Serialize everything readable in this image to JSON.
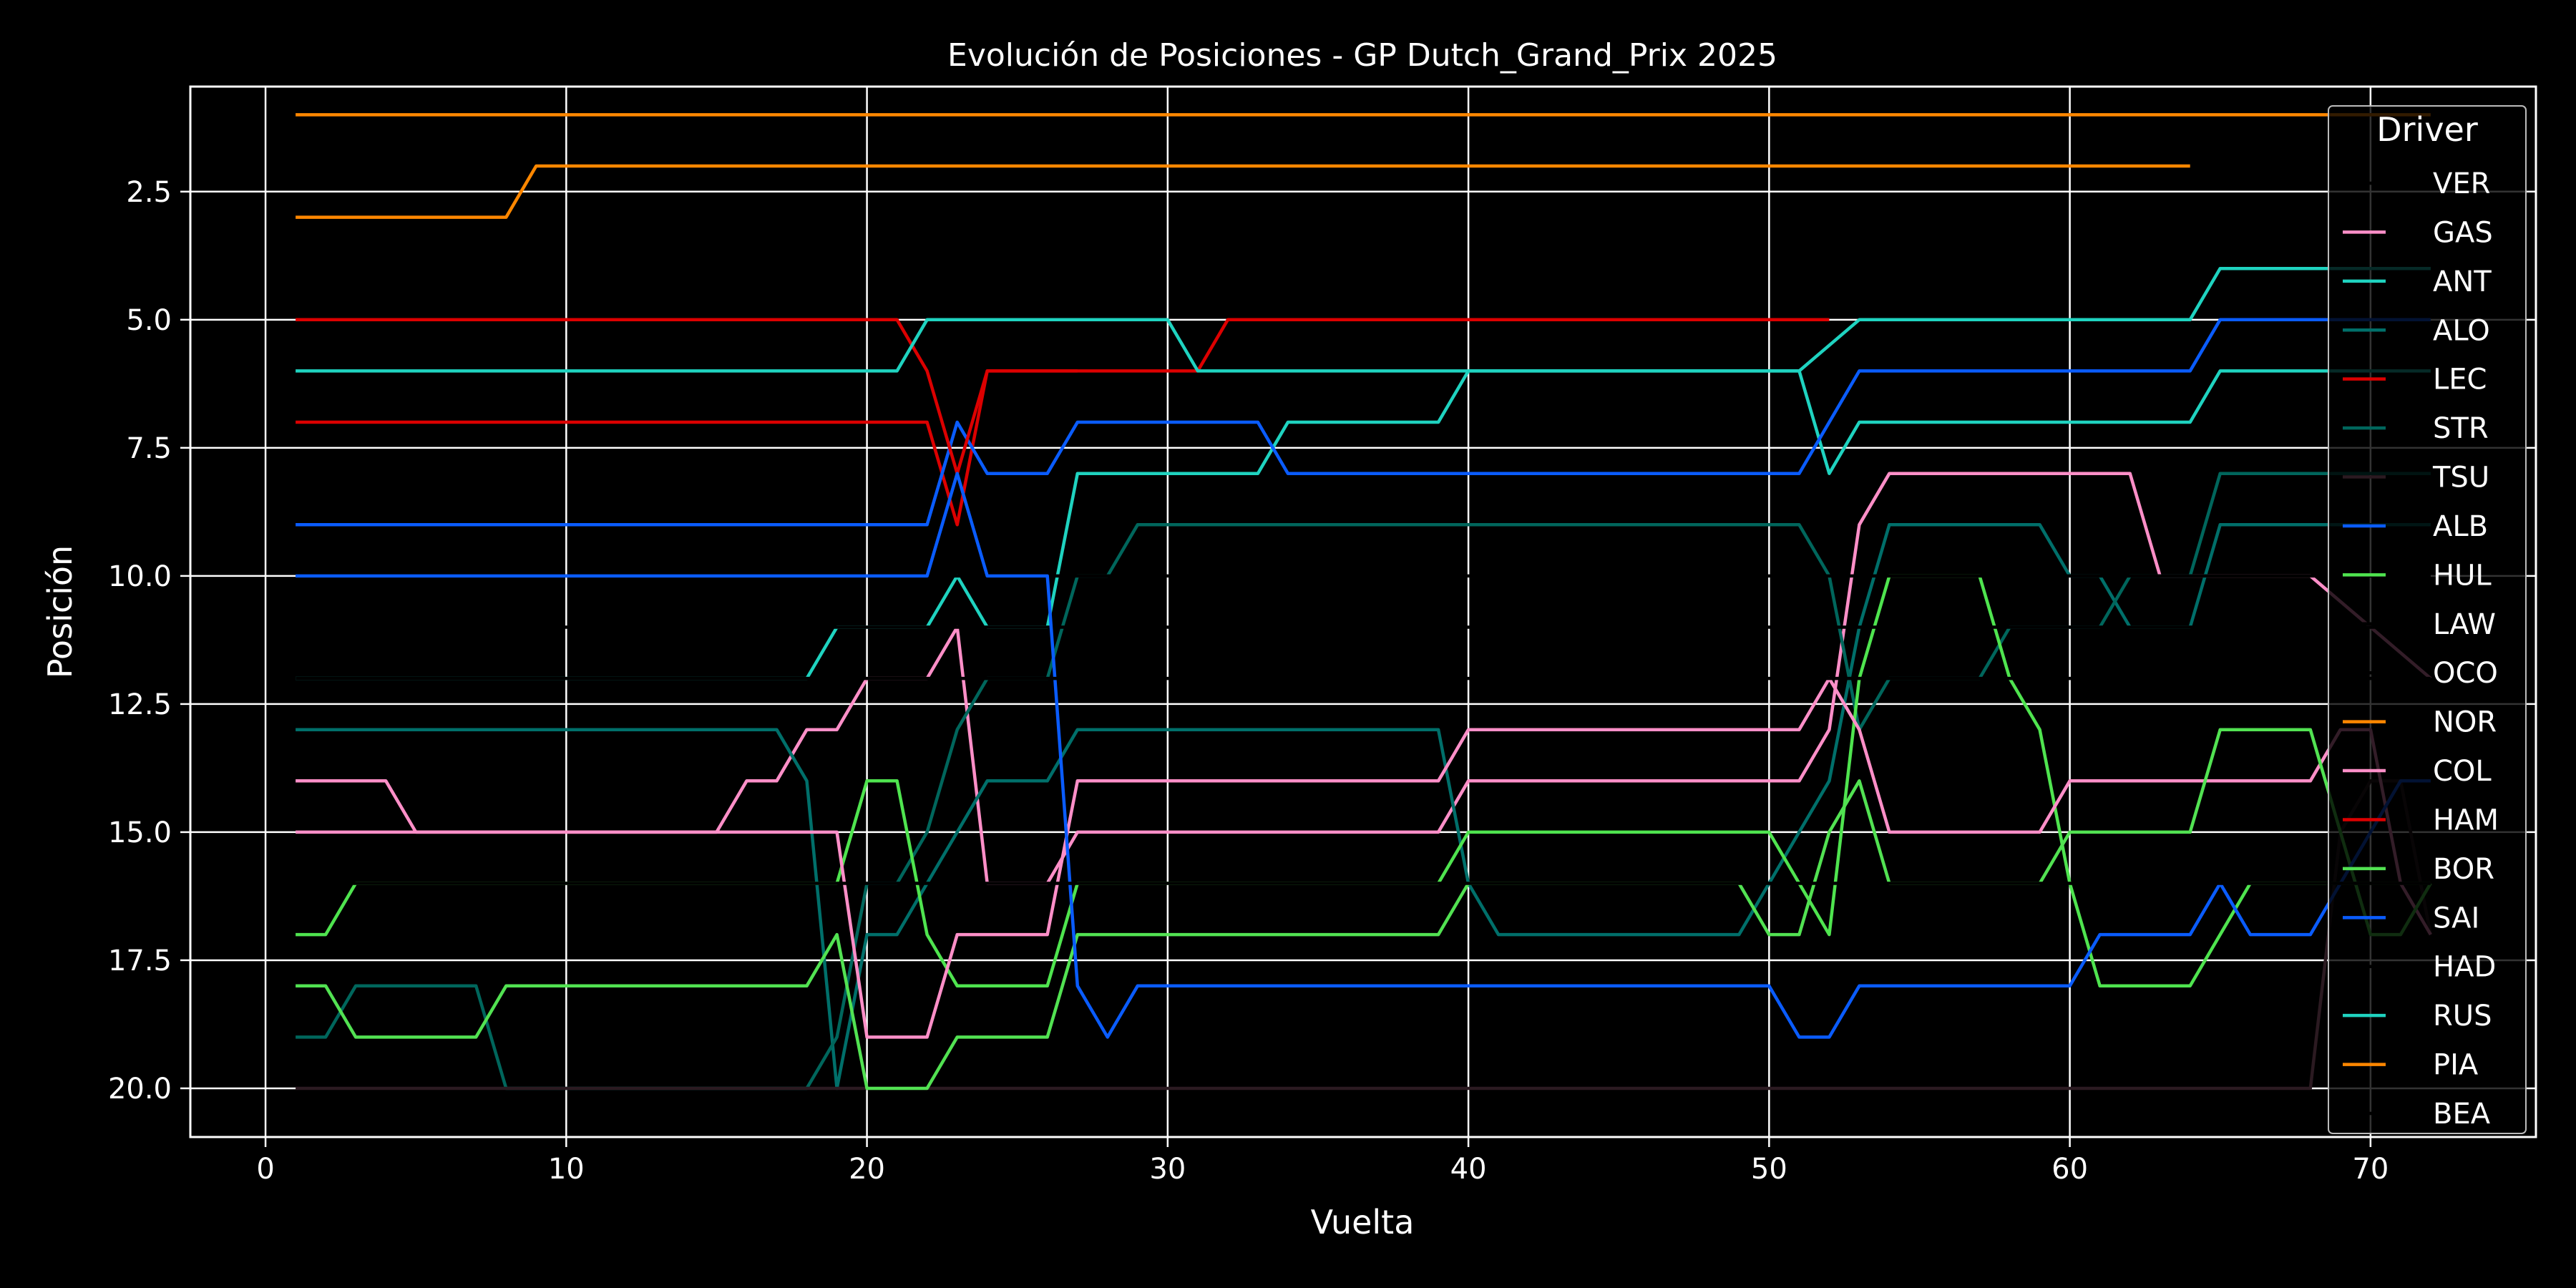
{
  "chart_data": {
    "type": "line",
    "title": "Evolución de Posiciones - GP Dutch_Grand_Prix 2025",
    "xlabel": "Vuelta",
    "ylabel": "Posición",
    "xlim": [
      -2.5,
      75.5
    ],
    "ylim": [
      20.95,
      0.45
    ],
    "y_inverted": true,
    "grid": true,
    "background": "#000000",
    "foreground": "#ffffff",
    "x_ticks": [
      0,
      10,
      20,
      30,
      40,
      50,
      60,
      70
    ],
    "x_tick_labels": [
      "0",
      "10",
      "20",
      "30",
      "40",
      "50",
      "60",
      "70"
    ],
    "y_ticks": [
      2.5,
      5.0,
      7.5,
      10.0,
      12.5,
      15.0,
      17.5,
      20.0
    ],
    "y_tick_labels": [
      "2.5",
      "5.0",
      "7.5",
      "10.0",
      "12.5",
      "15.0",
      "17.5",
      "20.0"
    ],
    "legend": {
      "title": "Driver",
      "position": "top-right"
    },
    "series": [
      {
        "name": "VER",
        "color": "#000000",
        "points": [
          [
            1,
            1
          ],
          [
            72,
            1
          ]
        ]
      },
      {
        "name": "GAS",
        "color": "#ff8fc8",
        "points": [
          [
            1,
            15
          ],
          [
            15,
            15
          ],
          [
            16,
            14
          ],
          [
            17,
            14
          ],
          [
            18,
            13
          ],
          [
            19,
            13
          ],
          [
            20,
            12
          ],
          [
            22,
            12
          ],
          [
            23,
            11
          ],
          [
            24,
            16
          ],
          [
            26,
            16
          ],
          [
            27,
            15
          ],
          [
            39,
            15
          ],
          [
            40,
            14
          ],
          [
            51,
            14
          ],
          [
            52,
            13
          ],
          [
            53,
            9
          ],
          [
            54,
            8
          ],
          [
            62,
            8
          ],
          [
            63,
            10
          ],
          [
            68,
            10
          ],
          [
            70,
            11
          ],
          [
            72,
            12
          ]
        ]
      },
      {
        "name": "ANT",
        "color": "#1fd3c0",
        "points": [
          [
            1,
            12
          ],
          [
            18,
            12
          ],
          [
            19,
            11
          ],
          [
            21,
            11
          ],
          [
            22,
            11
          ],
          [
            23,
            10
          ],
          [
            24,
            11
          ],
          [
            26,
            11
          ],
          [
            27,
            8
          ],
          [
            33,
            8
          ],
          [
            34,
            7
          ],
          [
            39,
            7
          ],
          [
            40,
            6
          ],
          [
            51,
            6
          ],
          [
            52,
            8
          ],
          [
            53,
            7
          ],
          [
            64,
            7
          ],
          [
            65,
            6
          ],
          [
            72,
            6
          ]
        ]
      },
      {
        "name": "ALO",
        "color": "#006f6a",
        "points": [
          [
            1,
            13
          ],
          [
            17,
            13
          ],
          [
            18,
            14
          ],
          [
            19,
            20
          ],
          [
            20,
            17
          ],
          [
            21,
            17
          ],
          [
            22,
            16
          ],
          [
            23,
            15
          ],
          [
            24,
            14
          ],
          [
            26,
            14
          ],
          [
            27,
            13
          ],
          [
            39,
            13
          ],
          [
            40,
            16
          ],
          [
            41,
            17
          ],
          [
            49,
            17
          ],
          [
            52,
            14
          ],
          [
            53,
            11
          ],
          [
            54,
            9
          ],
          [
            59,
            9
          ],
          [
            60,
            10
          ],
          [
            61,
            10
          ],
          [
            62,
            11
          ],
          [
            64,
            11
          ],
          [
            65,
            9
          ],
          [
            72,
            9
          ]
        ]
      },
      {
        "name": "LEC",
        "color": "#dc0000",
        "points": [
          [
            1,
            7
          ],
          [
            22,
            7
          ],
          [
            23,
            9
          ],
          [
            24,
            6
          ],
          [
            31,
            6
          ],
          [
            32,
            5
          ],
          [
            52,
            5
          ]
        ]
      },
      {
        "name": "STR",
        "color": "#00665c",
        "points": [
          [
            1,
            19
          ],
          [
            2,
            19
          ],
          [
            3,
            18
          ],
          [
            7,
            18
          ],
          [
            8,
            20
          ],
          [
            18,
            20
          ],
          [
            19,
            19
          ],
          [
            20,
            16
          ],
          [
            21,
            16
          ],
          [
            22,
            15
          ],
          [
            23,
            13
          ],
          [
            24,
            12
          ],
          [
            26,
            12
          ],
          [
            27,
            10
          ],
          [
            28,
            10
          ],
          [
            29,
            9
          ],
          [
            51,
            9
          ],
          [
            52,
            10
          ],
          [
            53,
            13
          ],
          [
            54,
            12
          ],
          [
            57,
            12
          ],
          [
            58,
            11
          ],
          [
            61,
            11
          ],
          [
            62,
            10
          ],
          [
            64,
            10
          ],
          [
            65,
            8
          ],
          [
            72,
            8
          ]
        ]
      },
      {
        "name": "TSU",
        "color": "#2b1a21",
        "points": [
          [
            1,
            20
          ],
          [
            2,
            20
          ],
          [
            68,
            20
          ],
          [
            69,
            15
          ],
          [
            70,
            14
          ],
          [
            71,
            14
          ],
          [
            72,
            17
          ]
        ]
      },
      {
        "name": "ALB",
        "color": "#0a5cff",
        "points": [
          [
            1,
            9
          ],
          [
            22,
            9
          ],
          [
            23,
            7
          ],
          [
            24,
            8
          ],
          [
            26,
            8
          ],
          [
            27,
            7
          ],
          [
            33,
            7
          ],
          [
            34,
            8
          ],
          [
            51,
            8
          ],
          [
            52,
            7
          ],
          [
            53,
            6
          ],
          [
            64,
            6
          ],
          [
            65,
            5
          ],
          [
            72,
            5
          ]
        ]
      },
      {
        "name": "HUL",
        "color": "#4fe44f",
        "points": [
          [
            1,
            17
          ],
          [
            2,
            17
          ],
          [
            3,
            16
          ],
          [
            19,
            16
          ],
          [
            20,
            14
          ],
          [
            21,
            14
          ],
          [
            22,
            17
          ],
          [
            23,
            18
          ],
          [
            26,
            18
          ],
          [
            27,
            16
          ],
          [
            39,
            16
          ],
          [
            40,
            15
          ],
          [
            50,
            15
          ],
          [
            51,
            16
          ],
          [
            52,
            17
          ],
          [
            53,
            12
          ],
          [
            54,
            10
          ],
          [
            57,
            10
          ],
          [
            58,
            12
          ],
          [
            59,
            13
          ],
          [
            60,
            16
          ],
          [
            61,
            18
          ],
          [
            64,
            18
          ],
          [
            65,
            17
          ],
          [
            66,
            16
          ],
          [
            72,
            16
          ]
        ]
      },
      {
        "name": "LAW",
        "color": "#000000",
        "points": [
          [
            1,
            10
          ],
          [
            72,
            10
          ]
        ]
      },
      {
        "name": "OCO",
        "color": "#000000",
        "points": [
          [
            1,
            11
          ],
          [
            72,
            11
          ]
        ]
      },
      {
        "name": "NOR",
        "color": "#ff8700",
        "points": [
          [
            1,
            3
          ],
          [
            8,
            3
          ],
          [
            9,
            2
          ],
          [
            64,
            2
          ]
        ]
      },
      {
        "name": "COL",
        "color": "#ff8fc8",
        "points": [
          [
            1,
            14
          ],
          [
            4,
            14
          ],
          [
            5,
            15
          ],
          [
            19,
            15
          ],
          [
            20,
            19
          ],
          [
            22,
            19
          ],
          [
            23,
            17
          ],
          [
            26,
            17
          ],
          [
            27,
            14
          ],
          [
            39,
            14
          ],
          [
            40,
            13
          ],
          [
            51,
            13
          ],
          [
            52,
            12
          ],
          [
            53,
            13
          ],
          [
            54,
            15
          ],
          [
            59,
            15
          ],
          [
            60,
            14
          ],
          [
            68,
            14
          ],
          [
            69,
            13
          ],
          [
            70,
            13
          ],
          [
            71,
            16
          ],
          [
            72,
            17
          ]
        ]
      },
      {
        "name": "HAM",
        "color": "#dc0000",
        "points": [
          [
            1,
            5
          ],
          [
            21,
            5
          ],
          [
            22,
            6
          ],
          [
            23,
            8
          ],
          [
            24,
            6
          ],
          [
            27,
            6
          ]
        ]
      },
      {
        "name": "BOR",
        "color": "#52e252",
        "points": [
          [
            1,
            18
          ],
          [
            2,
            18
          ],
          [
            3,
            19
          ],
          [
            7,
            19
          ],
          [
            8,
            18
          ],
          [
            18,
            18
          ],
          [
            19,
            17
          ],
          [
            20,
            20
          ],
          [
            22,
            20
          ],
          [
            23,
            19
          ],
          [
            26,
            19
          ],
          [
            27,
            17
          ],
          [
            39,
            17
          ],
          [
            40,
            16
          ],
          [
            49,
            16
          ],
          [
            50,
            17
          ],
          [
            51,
            17
          ],
          [
            52,
            15
          ],
          [
            53,
            14
          ],
          [
            54,
            16
          ],
          [
            59,
            16
          ],
          [
            60,
            15
          ],
          [
            64,
            15
          ],
          [
            65,
            13
          ],
          [
            68,
            13
          ],
          [
            69,
            15
          ],
          [
            70,
            17
          ],
          [
            71,
            17
          ],
          [
            72,
            16
          ]
        ]
      },
      {
        "name": "SAI",
        "color": "#0a5cff",
        "points": [
          [
            1,
            10
          ],
          [
            22,
            10
          ],
          [
            23,
            8
          ],
          [
            24,
            10
          ],
          [
            26,
            10
          ],
          [
            27,
            18
          ],
          [
            28,
            19
          ],
          [
            29,
            18
          ],
          [
            50,
            18
          ],
          [
            51,
            19
          ],
          [
            52,
            19
          ],
          [
            53,
            18
          ],
          [
            60,
            18
          ],
          [
            61,
            17
          ],
          [
            64,
            17
          ],
          [
            65,
            16
          ],
          [
            66,
            17
          ],
          [
            68,
            17
          ],
          [
            69,
            16
          ],
          [
            71,
            14
          ],
          [
            72,
            14
          ]
        ]
      },
      {
        "name": "HAD",
        "color": "#000000",
        "points": [
          [
            1,
            16
          ],
          [
            72,
            16
          ]
        ]
      },
      {
        "name": "RUS",
        "color": "#1fd3c0",
        "points": [
          [
            1,
            6
          ],
          [
            21,
            6
          ],
          [
            22,
            5
          ],
          [
            30,
            5
          ],
          [
            31,
            6
          ],
          [
            51,
            6
          ],
          [
            53,
            5
          ],
          [
            64,
            5
          ],
          [
            65,
            4
          ],
          [
            72,
            4
          ]
        ]
      },
      {
        "name": "PIA",
        "color": "#ff8700",
        "points": [
          [
            1,
            1
          ],
          [
            72,
            1
          ]
        ]
      },
      {
        "name": "BEA",
        "color": "#000000",
        "points": [
          [
            1,
            12
          ],
          [
            72,
            12
          ]
        ]
      }
    ]
  }
}
